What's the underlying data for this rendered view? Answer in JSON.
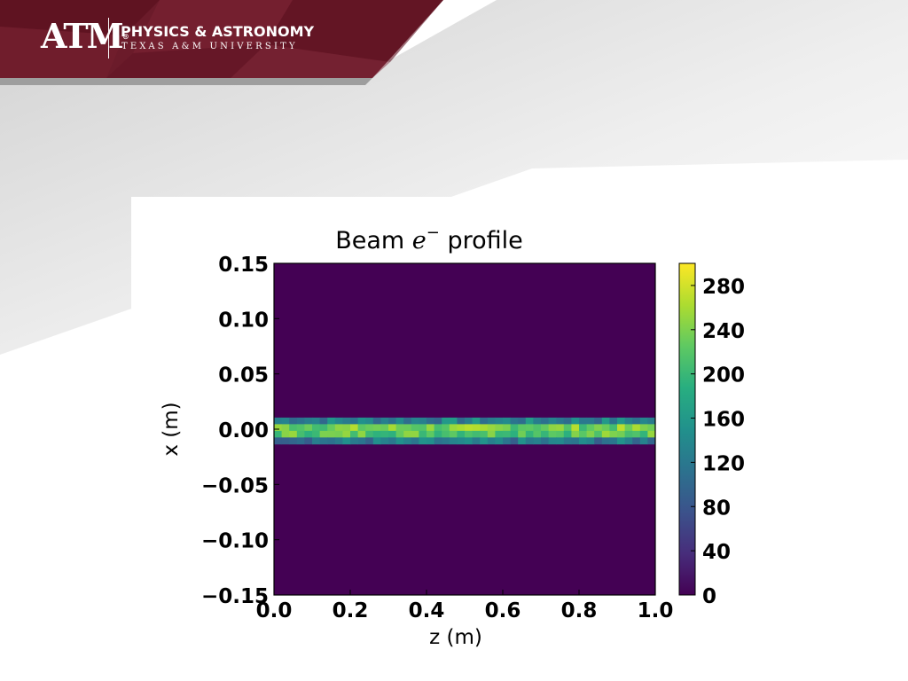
{
  "header": {
    "logo_text": "ATM",
    "logo_reg": "®",
    "department": "PHYSICS & ASTRONOMY",
    "university": "TEXAS A&M UNIVERSITY"
  },
  "colors": {
    "maroon": "#500000",
    "header_band": "#6a1a28",
    "viridis_low": "#440154",
    "viridis_high": "#fde725"
  },
  "chart_data": {
    "type": "heatmap",
    "title": "Beam",
    "title_math": "e",
    "title_sup": "−",
    "title_suffix": "profile",
    "xlabel": "z (m)",
    "ylabel": "x (m)",
    "xlim": [
      0.0,
      1.0
    ],
    "ylim": [
      -0.15,
      0.15
    ],
    "x_ticks": [
      "0.0",
      "0.2",
      "0.4",
      "0.6",
      "0.8",
      "1.0"
    ],
    "y_ticks": [
      "0.15",
      "0.10",
      "0.05",
      "0.00",
      "−0.05",
      "−0.10",
      "−0.15"
    ],
    "colormap": "viridis",
    "color_range": [
      0,
      300
    ],
    "colorbar_ticks": [
      "280",
      "240",
      "200",
      "160",
      "120",
      "80",
      "40",
      "0"
    ],
    "grid": false,
    "x_bins": 50,
    "y_bins": 50,
    "band": {
      "rows": [
        {
          "y_center": 0.0075,
          "base": 130
        },
        {
          "y_center": 0.0015,
          "base": 235
        },
        {
          "y_center": -0.0045,
          "base": 225
        },
        {
          "y_center": -0.0105,
          "base": 120
        }
      ],
      "background_value": 0
    }
  }
}
